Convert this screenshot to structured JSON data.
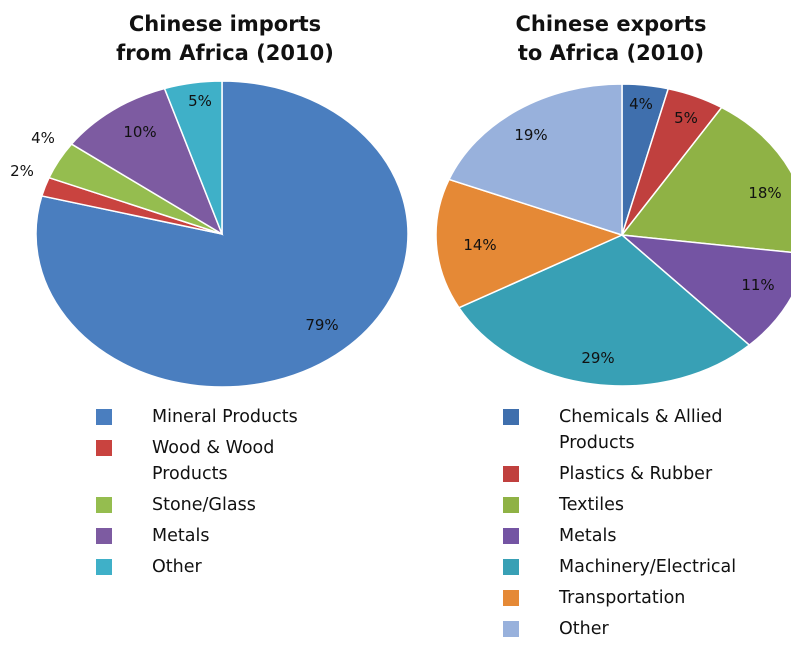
{
  "chart_data": [
    {
      "type": "pie",
      "title": "Chinese imports from Africa (2010)",
      "title_lines": [
        "Chinese imports",
        "from Africa (2010)"
      ],
      "slices": [
        {
          "label": "Mineral Products",
          "value": 79,
          "value_label": "79%",
          "color": "#4a7ebf"
        },
        {
          "label": "Wood & Wood Products",
          "value": 2,
          "value_label": "2%",
          "color": "#c9433f"
        },
        {
          "label": "Stone/Glass",
          "value": 4,
          "value_label": "4%",
          "color": "#95bd4f"
        },
        {
          "label": "Metals",
          "value": 10,
          "value_label": "10%",
          "color": "#7d5ba1"
        },
        {
          "label": "Other",
          "value": 5,
          "value_label": "5%",
          "color": "#3fb0c8"
        }
      ],
      "legend": [
        {
          "lines": [
            "Mineral Products"
          ],
          "color": "#4a7ebf"
        },
        {
          "lines": [
            "Wood & Wood",
            "Products"
          ],
          "color": "#c9433f"
        },
        {
          "lines": [
            "Stone/Glass"
          ],
          "color": "#95bd4f"
        },
        {
          "lines": [
            "Metals"
          ],
          "color": "#7d5ba1"
        },
        {
          "lines": [
            "Other"
          ],
          "color": "#3fb0c8"
        }
      ]
    },
    {
      "type": "pie",
      "title": "Chinese exports to Africa (2010)",
      "title_lines": [
        "Chinese exports",
        "to Africa (2010)"
      ],
      "slices": [
        {
          "label": "Chemicals & Allied Products",
          "value": 4,
          "value_label": "4%",
          "color": "#3f6fad"
        },
        {
          "label": "Plastics & Rubber",
          "value": 5,
          "value_label": "5%",
          "color": "#c0403e"
        },
        {
          "label": "Textiles",
          "value": 18,
          "value_label": "18%",
          "color": "#8fb245"
        },
        {
          "label": "Metals",
          "value": 11,
          "value_label": "11%",
          "color": "#7454a3"
        },
        {
          "label": "Machinery/Electrical",
          "value": 29,
          "value_label": "29%",
          "color": "#38a0b5"
        },
        {
          "label": "Transportation",
          "value": 14,
          "value_label": "14%",
          "color": "#e58936"
        },
        {
          "label": "Other",
          "value": 19,
          "value_label": "19%",
          "color": "#98b1dc"
        }
      ],
      "legend": [
        {
          "lines": [
            "Chemicals & Allied",
            "Products"
          ],
          "color": "#3f6fad"
        },
        {
          "lines": [
            "Plastics & Rubber"
          ],
          "color": "#c0403e"
        },
        {
          "lines": [
            "Textiles"
          ],
          "color": "#8fb245"
        },
        {
          "lines": [
            "Metals"
          ],
          "color": "#7454a3"
        },
        {
          "lines": [
            "Machinery/Electrical"
          ],
          "color": "#38a0b5"
        },
        {
          "lines": [
            "Transportation"
          ],
          "color": "#e58936"
        },
        {
          "lines": [
            "Other"
          ],
          "color": "#98b1dc"
        }
      ]
    }
  ]
}
